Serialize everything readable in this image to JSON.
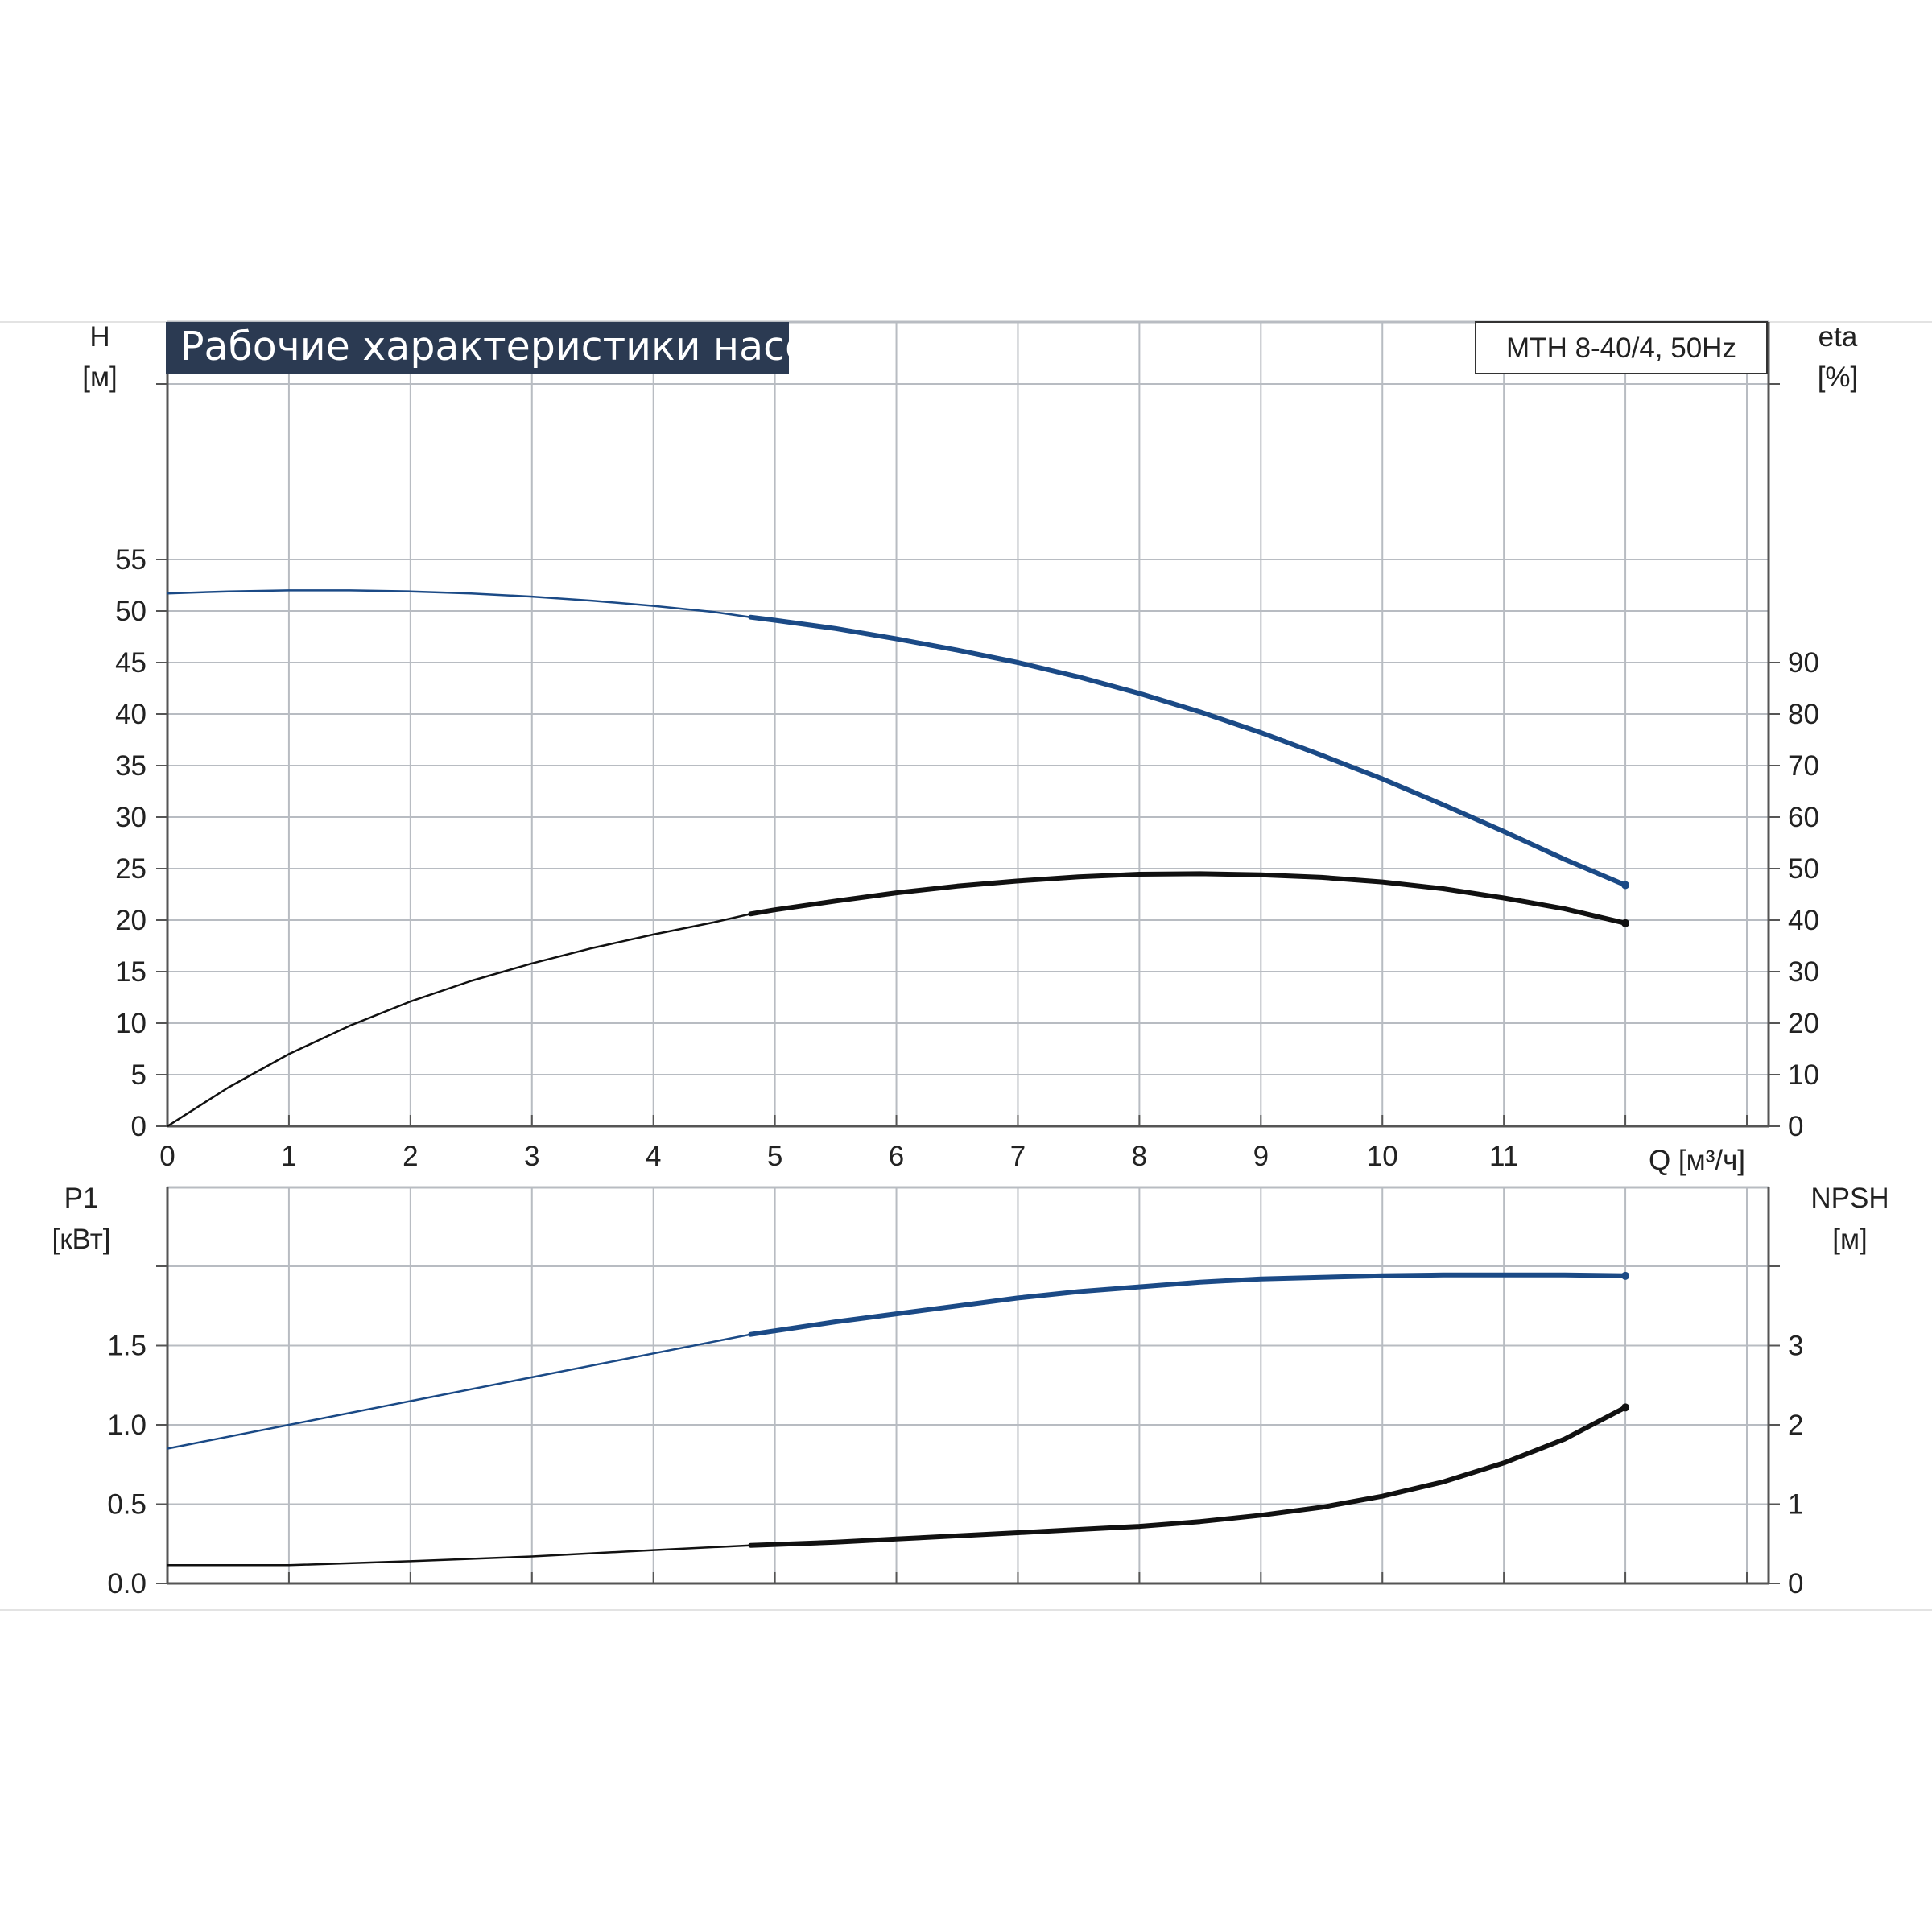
{
  "header": {
    "title": "Рабочие характеристики насоса",
    "model": "MTH 8-40/4, 50Hz"
  },
  "colors": {
    "title_bg": "#2b3a52",
    "blue": "#1b4a86",
    "black": "#111111",
    "grid": "#b8bcc2",
    "axis": "#555555"
  },
  "chart_data": [
    {
      "type": "line",
      "name": "H / eta",
      "xlabel": "Q [м³/ч]",
      "ylabel_left": [
        "H",
        "[м]"
      ],
      "ylabel_right": [
        "eta",
        "[%]"
      ],
      "x_ticks": [
        0,
        1,
        2,
        3,
        4,
        5,
        6,
        7,
        8,
        9,
        10,
        11
      ],
      "xlim": [
        0,
        13
      ],
      "ylim_left": [
        0,
        60
      ],
      "y_ticks_left": [
        0,
        5,
        10,
        15,
        20,
        25,
        30,
        35,
        40,
        45,
        50,
        55
      ],
      "ylim_right": [
        0,
        120
      ],
      "y_ticks_right": [
        0,
        10,
        20,
        30,
        40,
        50,
        60,
        70,
        80,
        90
      ],
      "grid": true,
      "operating_range": [
        4.8,
        12
      ],
      "series": [
        {
          "axis": "left",
          "color": "#1b4a86",
          "x": [
            0,
            0.5,
            1,
            1.5,
            2,
            2.5,
            3,
            3.5,
            4,
            4.5,
            4.8,
            5,
            5.5,
            6,
            6.5,
            7,
            7.5,
            8,
            8.5,
            9,
            9.5,
            10,
            10.5,
            11,
            11.5,
            12
          ],
          "y": [
            51.7,
            51.9,
            52.0,
            52.0,
            51.9,
            51.7,
            51.4,
            51.0,
            50.5,
            49.9,
            49.4,
            49.1,
            48.3,
            47.3,
            46.2,
            45.0,
            43.6,
            42.0,
            40.2,
            38.2,
            36.0,
            33.7,
            31.2,
            28.6,
            25.9,
            23.4
          ]
        },
        {
          "axis": "right",
          "color": "#111111",
          "x": [
            0,
            0.5,
            1,
            1.5,
            2,
            2.5,
            3,
            3.5,
            4,
            4.5,
            4.8,
            5,
            5.5,
            6,
            6.5,
            7,
            7.5,
            8,
            8.5,
            9,
            9.5,
            10,
            10.5,
            11,
            11.5,
            12
          ],
          "y": [
            0,
            7.5,
            14.0,
            19.5,
            24.2,
            28.2,
            31.6,
            34.6,
            37.2,
            39.6,
            41.2,
            42.0,
            43.7,
            45.3,
            46.6,
            47.6,
            48.4,
            48.9,
            49.0,
            48.8,
            48.3,
            47.4,
            46.1,
            44.3,
            42.2,
            39.4
          ]
        }
      ]
    },
    {
      "type": "line",
      "name": "P1 / NPSH",
      "ylabel_left": [
        "P1",
        "[кВт]"
      ],
      "ylabel_right": [
        "NPSH",
        "[м]"
      ],
      "x_ticks": [
        0,
        1,
        2,
        3,
        4,
        5,
        6,
        7,
        8,
        9,
        10,
        11
      ],
      "xlim": [
        0,
        13
      ],
      "ylim_left": [
        0,
        2.0
      ],
      "y_ticks_left": [
        "0.0",
        "0.5",
        "1.0",
        "1.5"
      ],
      "ylim_right": [
        0,
        4
      ],
      "y_ticks_right": [
        0,
        1,
        2,
        3
      ],
      "grid": true,
      "operating_range": [
        4.8,
        12
      ],
      "series": [
        {
          "axis": "left",
          "color": "#1b4a86",
          "x": [
            0,
            1,
            2,
            3,
            4,
            4.8,
            5.5,
            6,
            6.5,
            7,
            7.5,
            8,
            8.5,
            9,
            9.5,
            10,
            10.5,
            11,
            11.5,
            12
          ],
          "y": [
            0.85,
            1.0,
            1.15,
            1.3,
            1.45,
            1.57,
            1.65,
            1.7,
            1.75,
            1.8,
            1.84,
            1.87,
            1.9,
            1.92,
            1.93,
            1.94,
            1.945,
            1.945,
            1.945,
            1.94
          ]
        },
        {
          "axis": "right",
          "color": "#111111",
          "x": [
            0,
            1,
            2,
            3,
            4,
            4.8,
            5.5,
            6,
            6.5,
            7,
            7.5,
            8,
            8.5,
            9,
            9.5,
            10,
            10.5,
            11,
            11.5,
            12
          ],
          "y": [
            0.23,
            0.23,
            0.28,
            0.34,
            0.42,
            0.48,
            0.52,
            0.56,
            0.6,
            0.64,
            0.68,
            0.72,
            0.78,
            0.86,
            0.96,
            1.1,
            1.28,
            1.52,
            1.82,
            2.22
          ]
        }
      ]
    }
  ]
}
